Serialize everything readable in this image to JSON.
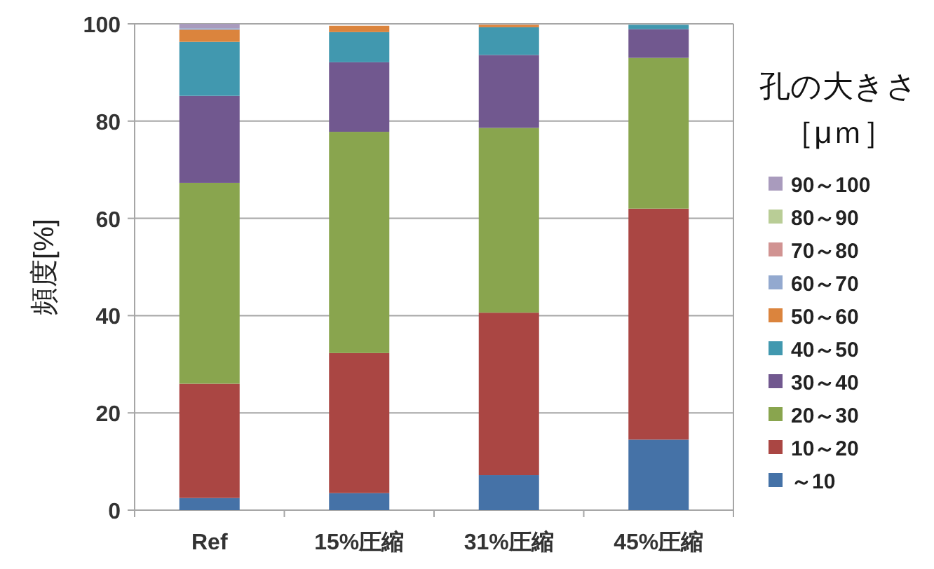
{
  "chart_data": {
    "type": "bar",
    "stacked": true,
    "ylabel": "頻度[%]",
    "legend_title": "孔の大きさ［μｍ］",
    "legend": "right",
    "grid": "y",
    "categories": [
      "Ref",
      "15%圧縮",
      "31%圧縮",
      "45%圧縮"
    ],
    "ylim": [
      0,
      100
    ],
    "yticks": [
      0,
      20,
      40,
      60,
      80,
      100
    ],
    "series": [
      {
        "name": "～10",
        "color": "#4572a7",
        "values": [
          2.5,
          3.5,
          7.2,
          14.5
        ]
      },
      {
        "name": "10～20",
        "color": "#aa4643",
        "values": [
          23.5,
          28.8,
          33.4,
          47.5
        ]
      },
      {
        "name": "20～30",
        "color": "#89a54e",
        "values": [
          41.3,
          45.5,
          38,
          31
        ]
      },
      {
        "name": "30～40",
        "color": "#71588f",
        "values": [
          17.9,
          14.3,
          15,
          5.9
        ]
      },
      {
        "name": "40～50",
        "color": "#4198af",
        "values": [
          11.1,
          6.2,
          5.7,
          0.9
        ]
      },
      {
        "name": "50～60",
        "color": "#db843d",
        "values": [
          2.5,
          1.3,
          0.5,
          null
        ]
      },
      {
        "name": "60～70",
        "color": "#93a9cf",
        "values": [
          0.3,
          null,
          null,
          0
        ]
      },
      {
        "name": "70～80",
        "color": "#d19392",
        "values": [
          0,
          0,
          0,
          0
        ]
      },
      {
        "name": "80～90",
        "color": "#b9cd96",
        "values": [
          0,
          0,
          0,
          0
        ]
      },
      {
        "name": "90～100",
        "color": "#a99bbd",
        "values": [
          0.9,
          0,
          0,
          0
        ]
      }
    ]
  }
}
